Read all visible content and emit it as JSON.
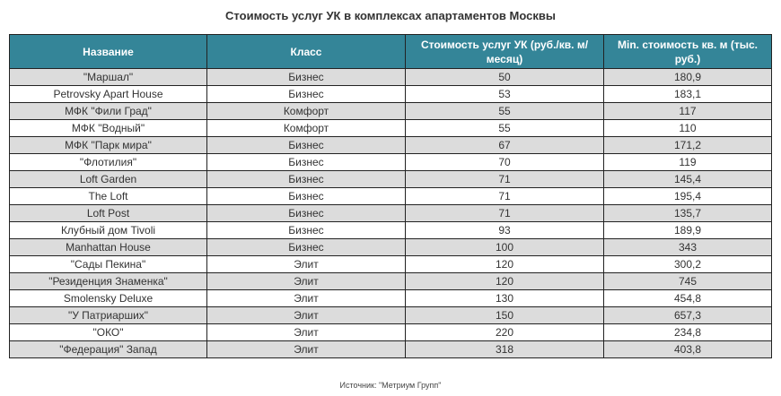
{
  "chart_data": {
    "type": "table",
    "title": "Стоимость услуг УК в комплексах апартаментов Москвы",
    "columns": [
      "Название",
      "Класс",
      "Стоимость услуг УК (руб./кв. м/месяц)",
      "Min. стоимость кв. м (тыс. руб.)"
    ],
    "rows": [
      [
        "\"Маршал\"",
        "Бизнес",
        "50",
        "180,9"
      ],
      [
        "Petrovsky Apart House",
        "Бизнес",
        "53",
        "183,1"
      ],
      [
        "МФК \"Фили Град\"",
        "Комфорт",
        "55",
        "117"
      ],
      [
        "МФК \"Водный\"",
        "Комфорт",
        "55",
        "110"
      ],
      [
        "МФК \"Парк мира\"",
        "Бизнес",
        "67",
        "171,2"
      ],
      [
        "\"Флотилия\"",
        "Бизнес",
        "70",
        "119"
      ],
      [
        "Loft Garden",
        "Бизнес",
        "71",
        "145,4"
      ],
      [
        "The Loft",
        "Бизнес",
        "71",
        "195,4"
      ],
      [
        "Loft Post",
        "Бизнес",
        "71",
        "135,7"
      ],
      [
        "Клубный дом Tivoli",
        "Бизнес",
        "93",
        "189,9"
      ],
      [
        "Manhattan House",
        "Бизнес",
        "100",
        "343"
      ],
      [
        "\"Сады Пекина\"",
        "Элит",
        "120",
        "300,2"
      ],
      [
        "\"Резиденция Знаменка\"",
        "Элит",
        "120",
        "745"
      ],
      [
        "Smolensky Deluxe",
        "Элит",
        "130",
        "454,8"
      ],
      [
        "\"У Патриарших\"",
        "Элит",
        "150",
        "657,3"
      ],
      [
        "\"ОКО\"",
        "Элит",
        "220",
        "234,8"
      ],
      [
        "\"Федерация\" Запад",
        "Элит",
        "318",
        "403,8"
      ]
    ],
    "source": "Источник: \"Метриум Групп\"",
    "colors": {
      "header": "#348598",
      "stripe": "#dcdcdc"
    }
  }
}
